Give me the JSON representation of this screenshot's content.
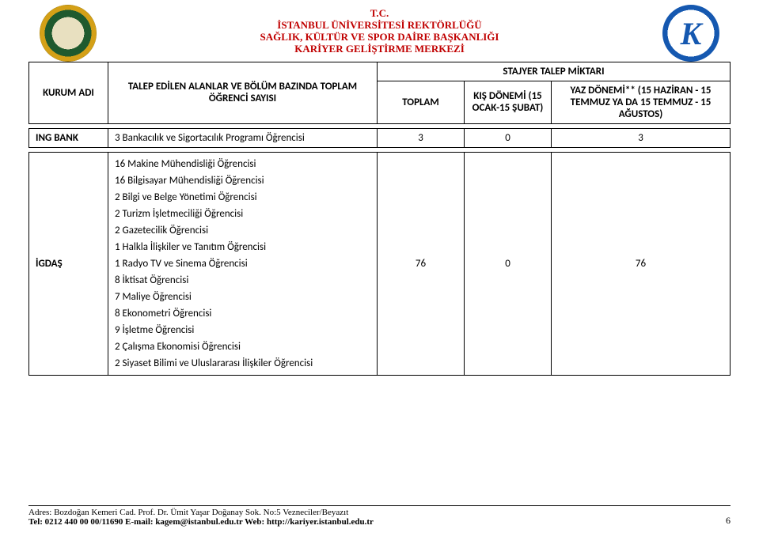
{
  "header": {
    "line1": "T.C.",
    "line2": "İSTANBUL ÜNİVERSİTESİ REKTÖRLÜĞÜ",
    "line3": "SAĞLIK, KÜLTÜR VE SPOR DAİRE BAŞKANLIĞI",
    "line4": "KARİYER GELİŞTİRME MERKEZİ",
    "color": "#c00000"
  },
  "columns": {
    "kurum": "KURUM ADI",
    "talep": "TALEP EDİLEN ALANLAR VE BÖLÜM BAZINDA TOPLAM ÖĞRENCİ SAYISI",
    "stajyer": "STAJYER TALEP MİKTARI",
    "toplam": "TOPLAM",
    "kis": "KIŞ DÖNEMİ (15 OCAK-15 ŞUBAT)",
    "yaz": "YAZ DÖNEMİ** (15 HAZİRAN - 15 TEMMUZ YA DA 15 TEMMUZ - 15 AĞUSTOS)"
  },
  "row_ing": {
    "kurum": "ING BANK",
    "desc": "3 Bankacılık ve Sigortacılık Programı Öğrencisi",
    "toplam": "3",
    "kis": "0",
    "yaz": "3"
  },
  "row_igdas": {
    "kurum": "İGDAŞ",
    "items": [
      "16 Makine Mühendisliği Öğrencisi",
      "16 Bilgisayar Mühendisliği Öğrencisi",
      "2 Bilgi ve Belge Yönetimi Öğrencisi",
      "2 Turizm İşletmeciliği Öğrencisi",
      "2 Gazetecilik Öğrencisi",
      "1 Halkla İlişkiler ve Tanıtım Öğrencisi",
      "1 Radyo TV ve Sinema Öğrencisi",
      "8 İktisat Öğrencisi",
      "7 Maliye Öğrencisi",
      "8 Ekonometri Öğrencisi",
      "9 İşletme Öğrencisi",
      "2 Çalışma Ekonomisi Öğrencisi",
      "2 Siyaset Bilimi ve Uluslararası İlişkiler Öğrencisi"
    ],
    "toplam": "76",
    "kis": "0",
    "yaz": "76"
  },
  "footer": {
    "line1": "Adres: Bozdoğan Kemeri Cad. Prof. Dr. Ümit Yaşar Doğanay Sok. No:5 Vezneciler/Beyazıt",
    "line2_a": "Tel: 0212 440 00 00/11690  E-mail: kagem@istanbul.edu.tr   ",
    "line2_b": "Web: http://kariyer.istanbul.edu.tr",
    "page": "6"
  }
}
